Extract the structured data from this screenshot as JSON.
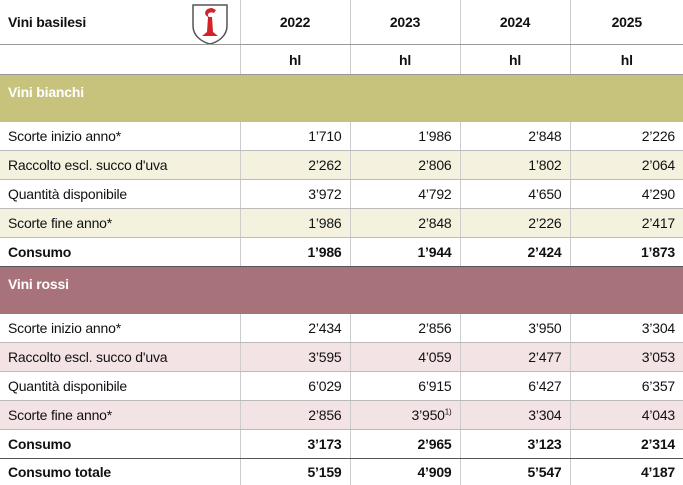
{
  "header": {
    "title": "Vini basilesi",
    "years": [
      "2022",
      "2023",
      "2024",
      "2025"
    ],
    "units": [
      "hl",
      "hl",
      "hl",
      "hl"
    ]
  },
  "sections": [
    {
      "title": "Vini bianchi",
      "rows": [
        {
          "label": "Scorte inizio anno*",
          "values": [
            "1’710",
            "1’986",
            "2’848",
            "2’226"
          ]
        },
        {
          "label": "Raccolto escl. succo d'uva",
          "values": [
            "2’262",
            "2’806",
            "1’802",
            "2’064"
          ]
        },
        {
          "label": "Quantità disponibile",
          "values": [
            "3’972",
            "4’792",
            "4’650",
            "4’290"
          ]
        },
        {
          "label": "Scorte fine anno*",
          "values": [
            "1’986",
            "2’848",
            "2’226",
            "2’417"
          ]
        },
        {
          "label": "Consumo",
          "values": [
            "1’986",
            "1’944",
            "2’424",
            "1’873"
          ]
        }
      ]
    },
    {
      "title": "Vini rossi",
      "rows": [
        {
          "label": "Scorte inizio anno*",
          "values": [
            "2’434",
            "2’856",
            "3’950",
            "3’304"
          ]
        },
        {
          "label": "Raccolto escl. succo d'uva",
          "values": [
            "3’595",
            "4’059",
            "2’477",
            "3’053"
          ]
        },
        {
          "label": "Quantità disponibile",
          "values": [
            "6’029",
            "6’915",
            "6’427",
            "6’357"
          ]
        },
        {
          "label": "Scorte fine anno*",
          "values": [
            "2’856",
            "3’950",
            "3’304",
            "4’043"
          ],
          "footnotes": [
            null,
            "1)",
            null,
            null
          ]
        },
        {
          "label": "Consumo",
          "values": [
            "3’173",
            "2’965",
            "3’123",
            "2’314"
          ]
        }
      ]
    }
  ],
  "total": {
    "label": "Consumo totale",
    "values": [
      "5’159",
      "4’909",
      "5’547",
      "4’187"
    ]
  }
}
